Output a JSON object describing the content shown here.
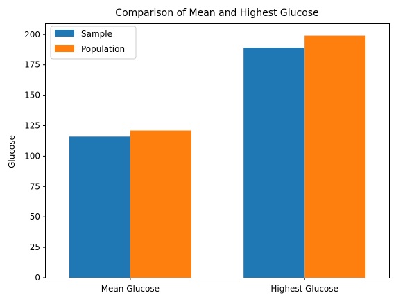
{
  "chart_data": {
    "type": "bar",
    "title": "Comparison of Mean and Highest Glucose",
    "xlabel": "",
    "ylabel": "Glucose",
    "categories": [
      "Mean Glucose",
      "Highest Glucose"
    ],
    "series": [
      {
        "name": "Sample",
        "color": "#1f77b4",
        "values": [
          116,
          189
        ]
      },
      {
        "name": "Population",
        "color": "#ff7f0e",
        "values": [
          121,
          199
        ]
      }
    ],
    "ylim": [
      0,
      209
    ],
    "yticks": [
      "0",
      "25",
      "50",
      "75",
      "100",
      "125",
      "150",
      "175",
      "200"
    ],
    "grid": false,
    "legend_position": "top-left"
  }
}
